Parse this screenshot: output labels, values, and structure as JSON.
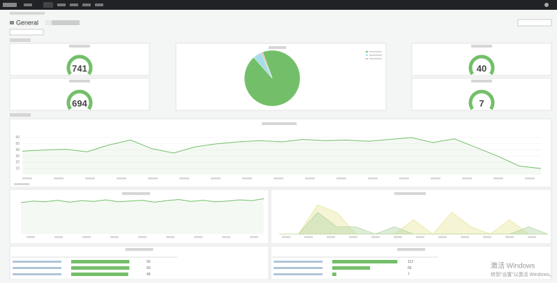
{
  "breadcrumb": {
    "folder": "General"
  },
  "gauges": [
    {
      "value": 741
    },
    {
      "value": 694
    },
    {
      "value": 40
    },
    {
      "value": 7
    }
  ],
  "gauge_color": "#73bf69",
  "pie": {
    "values": [
      94,
      5,
      1
    ],
    "colors": [
      "#73bf69",
      "#a7dde8",
      "#e0b4b4"
    ]
  },
  "line_main": {
    "values": [
      38,
      40,
      41,
      37,
      48,
      56,
      42,
      35,
      45,
      50,
      53,
      55,
      53,
      57,
      55,
      56,
      54,
      57,
      60,
      52,
      58,
      44,
      30,
      14,
      10
    ],
    "ylim": [
      0,
      70
    ],
    "yticks": [
      10,
      20,
      30,
      40,
      50,
      60
    ],
    "color": "#73bf69"
  },
  "line_left": {
    "values": [
      82,
      86,
      84,
      88,
      83,
      87,
      85,
      89,
      84,
      86,
      88,
      83,
      87,
      90,
      85,
      88,
      84,
      86,
      89,
      87,
      92
    ],
    "ylim": [
      0,
      100
    ],
    "color": "#73bf69"
  },
  "area_right": {
    "ylim": [
      0,
      5
    ],
    "series": [
      {
        "color": "#e8e6a0",
        "values": [
          0,
          0,
          4,
          3,
          0,
          0,
          0,
          2,
          0,
          3,
          1,
          0,
          2,
          0,
          0
        ]
      },
      {
        "color": "#b7d7a8",
        "values": [
          0,
          0,
          3,
          1,
          1,
          0,
          1,
          0,
          0,
          0,
          0,
          0,
          0,
          1,
          0
        ]
      }
    ]
  },
  "table_left": {
    "values": [
      50,
      50,
      49
    ],
    "max": 60
  },
  "table_right": {
    "values": [
      112,
      65,
      7
    ],
    "max": 120
  },
  "watermark": {
    "line1": "激活 Windows",
    "line2": "转到“设置”以激活 Windows。"
  }
}
